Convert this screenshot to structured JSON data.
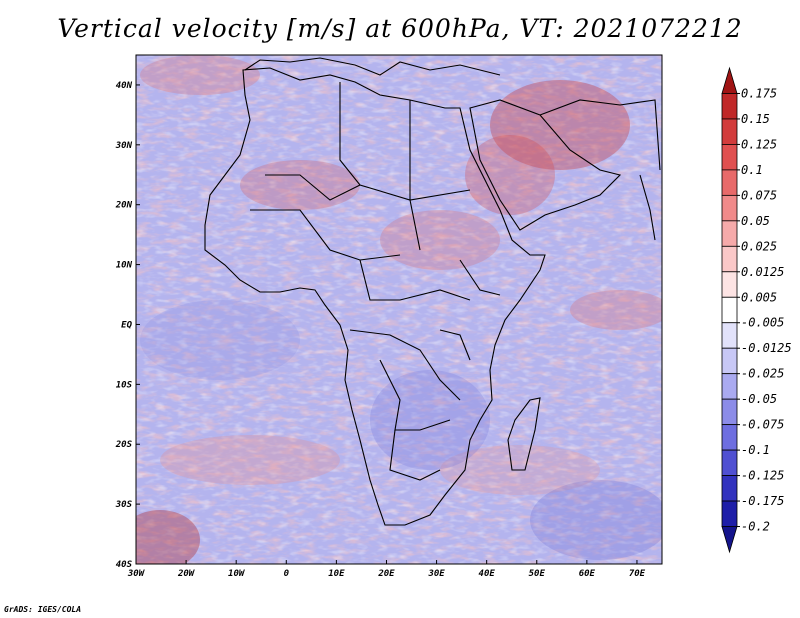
{
  "title": "Vertical velocity [m/s] at 600hPa, VT: 2021072212",
  "credit": "GrADS: IGES/COLA",
  "map": {
    "lon_range": [
      -30,
      75
    ],
    "lat_range": [
      -40,
      45
    ],
    "lat_labels": [
      "40N",
      "30N",
      "20N",
      "10N",
      "EQ",
      "10S",
      "20S",
      "30S",
      "40S"
    ],
    "lat_values": [
      40,
      30,
      20,
      10,
      0,
      -10,
      -20,
      -30,
      -40
    ],
    "lon_labels": [
      "30W",
      "20W",
      "10W",
      "0",
      "10E",
      "20E",
      "30E",
      "40E",
      "50E",
      "60E",
      "70E"
    ],
    "lon_values": [
      -30,
      -20,
      -10,
      0,
      10,
      20,
      30,
      40,
      50,
      60,
      70
    ]
  },
  "colorbar": {
    "labels": [
      "0.175",
      "0.15",
      "0.125",
      "0.1",
      "0.075",
      "0.05",
      "0.025",
      "0.0125",
      "0.005",
      "-0.005",
      "-0.0125",
      "-0.025",
      "-0.05",
      "-0.075",
      "-0.1",
      "-0.125",
      "-0.175",
      "-0.2"
    ],
    "colors": [
      "#a01414",
      "#c02828",
      "#d23c3c",
      "#e05050",
      "#e86a6a",
      "#f08a8a",
      "#f6aaaa",
      "#fac8c8",
      "#fde4e4",
      "#ffffff",
      "#e2e2fa",
      "#c8c8f6",
      "#aaaaf0",
      "#8c8ce8",
      "#6e6ee0",
      "#5050d2",
      "#3232be",
      "#1e1ea8",
      "#14148c"
    ]
  }
}
